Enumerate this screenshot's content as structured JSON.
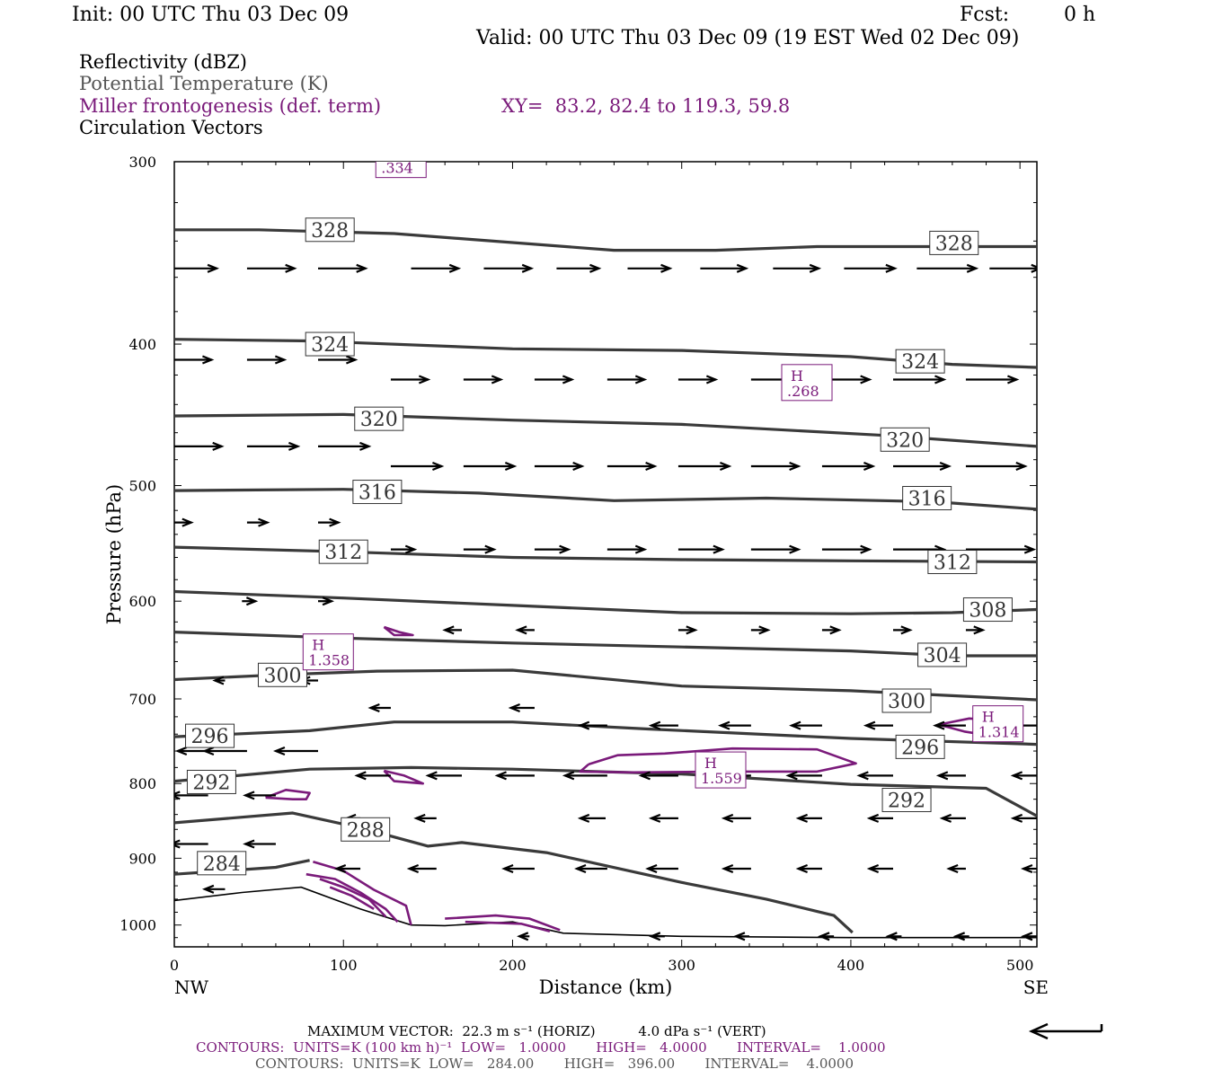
{
  "header": {
    "init": "Init: 00 UTC Thu 03 Dec 09",
    "fcst_label": "Fcst:",
    "fcst_value": "0 h",
    "valid": "Valid: 00 UTC Thu 03 Dec 09 (19 EST Wed 02 Dec 09)"
  },
  "legend": {
    "reflectivity": "Reflectivity (dBZ)",
    "theta": "Potential Temperature (K)",
    "miller": "Miller frontogenesis (def. term)",
    "xy": "XY=  83.2, 82.4 to 119.3, 59.8",
    "circulation": "Circulation Vectors"
  },
  "footer": {
    "max_vector": "MAXIMUM VECTOR:  22.3 m s⁻¹ (HORIZ)          4.0 dPa s⁻¹ (VERT)",
    "contours_purple": "CONTOURS:  UNITS=K (100 km h)⁻¹  LOW=   1.0000       HIGH=   4.0000       INTERVAL=    1.0000",
    "contours_gray": "CONTOURS:  UNITS=K  LOW=   284.00       HIGH=   396.00       INTERVAL=    4.0000"
  },
  "colors": {
    "theta": "#3a3a3a",
    "miller": "#7a1a7a",
    "vector": "#000000"
  },
  "chart_data": {
    "type": "cross-section",
    "xlabel": "Distance (km)",
    "ylabel": "Pressure (hPa)",
    "xlim": [
      0,
      510
    ],
    "ylim": [
      1035,
      300
    ],
    "y_scale": "log",
    "x_ticks": [
      0,
      100,
      200,
      300,
      400,
      500
    ],
    "y_ticks": [
      300,
      400,
      500,
      600,
      700,
      800,
      900,
      1000
    ],
    "x_end_labels": [
      "NW",
      "SE"
    ],
    "theta_contours": [
      {
        "value": 328,
        "points": [
          [
            0,
            334
          ],
          [
            50,
            334
          ],
          [
            130,
            336
          ],
          [
            260,
            345
          ],
          [
            320,
            345
          ],
          [
            380,
            343
          ],
          [
            450,
            343
          ],
          [
            510,
            343
          ]
        ],
        "labels": [
          [
            92,
            334
          ],
          [
            461,
            341
          ]
        ]
      },
      {
        "value": 324,
        "points": [
          [
            0,
            397
          ],
          [
            80,
            398
          ],
          [
            200,
            403
          ],
          [
            300,
            404
          ],
          [
            400,
            408
          ],
          [
            460,
            413
          ],
          [
            510,
            415
          ]
        ],
        "labels": [
          [
            92,
            400
          ],
          [
            441,
            411
          ]
        ]
      },
      {
        "value": 320,
        "points": [
          [
            0,
            448
          ],
          [
            100,
            447
          ],
          [
            200,
            451
          ],
          [
            300,
            454
          ],
          [
            420,
            462
          ],
          [
            510,
            470
          ]
        ],
        "labels": [
          [
            121,
            450
          ],
          [
            432,
            465
          ]
        ]
      },
      {
        "value": 316,
        "points": [
          [
            0,
            504
          ],
          [
            100,
            503
          ],
          [
            180,
            506
          ],
          [
            260,
            512
          ],
          [
            350,
            510
          ],
          [
            450,
            513
          ],
          [
            510,
            519
          ]
        ],
        "labels": [
          [
            120,
            505
          ],
          [
            445,
            510
          ]
        ]
      },
      {
        "value": 312,
        "points": [
          [
            0,
            551
          ],
          [
            100,
            555
          ],
          [
            200,
            560
          ],
          [
            300,
            562
          ],
          [
            400,
            563
          ],
          [
            510,
            564
          ]
        ],
        "labels": [
          [
            100,
            555
          ],
          [
            460,
            564
          ]
        ]
      },
      {
        "value": 308,
        "points": [
          [
            0,
            591
          ],
          [
            100,
            597
          ],
          [
            200,
            604
          ],
          [
            300,
            611
          ],
          [
            400,
            612
          ],
          [
            460,
            611
          ],
          [
            510,
            608
          ]
        ],
        "labels": [
          [
            481,
            608
          ]
        ]
      },
      {
        "value": 304,
        "points": [
          [
            0,
            630
          ],
          [
            100,
            636
          ],
          [
            200,
            641
          ],
          [
            300,
            645
          ],
          [
            400,
            649
          ],
          [
            460,
            654
          ],
          [
            510,
            654
          ]
        ],
        "labels": [
          [
            454,
            653
          ]
        ]
      },
      {
        "value": 300,
        "points": [
          [
            0,
            679
          ],
          [
            60,
            674
          ],
          [
            120,
            670
          ],
          [
            200,
            669
          ],
          [
            300,
            686
          ],
          [
            400,
            691
          ],
          [
            510,
            701
          ]
        ],
        "labels": [
          [
            64,
            674
          ],
          [
            433,
            702
          ]
        ]
      },
      {
        "value": 296,
        "points": [
          [
            0,
            743
          ],
          [
            80,
            736
          ],
          [
            130,
            726
          ],
          [
            200,
            726
          ],
          [
            280,
            734
          ],
          [
            400,
            745
          ],
          [
            510,
            752
          ]
        ],
        "labels": [
          [
            21,
            742
          ],
          [
            441,
            755
          ]
        ]
      },
      {
        "value": 292,
        "points": [
          [
            0,
            797
          ],
          [
            80,
            782
          ],
          [
            140,
            780
          ],
          [
            200,
            782
          ],
          [
            300,
            788
          ],
          [
            400,
            801
          ],
          [
            480,
            806
          ],
          [
            510,
            842
          ]
        ],
        "labels": [
          [
            22,
            798
          ],
          [
            433,
            821
          ]
        ]
      },
      {
        "value": 288,
        "points": [
          [
            0,
            851
          ],
          [
            70,
            838
          ],
          [
            110,
            858
          ],
          [
            150,
            883
          ],
          [
            170,
            878
          ],
          [
            220,
            892
          ],
          [
            300,
            935
          ],
          [
            350,
            960
          ],
          [
            390,
            985
          ],
          [
            401,
            1012
          ]
        ],
        "labels": [
          [
            113,
            860
          ]
        ]
      },
      {
        "value": 284,
        "points": [
          [
            0,
            923
          ],
          [
            60,
            913
          ],
          [
            80,
            903
          ]
        ],
        "labels": [
          [
            28,
            907
          ]
        ]
      }
    ],
    "terrain": [
      [
        0,
        962
      ],
      [
        40,
        950
      ],
      [
        75,
        942
      ],
      [
        110,
        975
      ],
      [
        140,
        1000
      ],
      [
        160,
        1001
      ],
      [
        200,
        995
      ],
      [
        230,
        1013
      ],
      [
        300,
        1018
      ],
      [
        400,
        1020
      ],
      [
        510,
        1020
      ]
    ],
    "miller_maxima": [
      {
        "label": "H",
        "value": 1.358,
        "x": 91,
        "p": 650
      },
      {
        "label": "H",
        "value": 1.559,
        "x": 323,
        "p": 783
      },
      {
        "label": "H",
        "value": 1.314,
        "x": 487,
        "p": 728
      },
      {
        "label": "H",
        "value": 0.268,
        "x": 374,
        "p": 425
      },
      {
        "label": "",
        "value": 0.334,
        "x": 134,
        "p": 299
      }
    ],
    "miller_contours": [
      [
        [
          245,
          776
        ],
        [
          262,
          765
        ],
        [
          290,
          763
        ],
        [
          330,
          757
        ],
        [
          380,
          758
        ],
        [
          403,
          775
        ],
        [
          380,
          785
        ],
        [
          330,
          785
        ],
        [
          270,
          786
        ],
        [
          240,
          785
        ],
        [
          245,
          776
        ]
      ],
      [
        [
          54,
          818
        ],
        [
          70,
          820
        ],
        [
          78,
          820
        ],
        [
          80,
          812
        ],
        [
          66,
          808
        ],
        [
          54,
          818
        ]
      ],
      [
        [
          124,
          784
        ],
        [
          136,
          790
        ],
        [
          147,
          800
        ],
        [
          130,
          797
        ],
        [
          124,
          784
        ]
      ],
      [
        [
          124,
          625
        ],
        [
          133,
          630
        ],
        [
          141,
          633
        ],
        [
          130,
          633
        ],
        [
          124,
          625
        ]
      ],
      [
        [
          452,
          729
        ],
        [
          470,
          722
        ],
        [
          485,
          724
        ],
        [
          480,
          741
        ],
        [
          467,
          737
        ],
        [
          452,
          729
        ]
      ],
      [
        [
          82,
          905
        ],
        [
          100,
          918
        ],
        [
          118,
          946
        ],
        [
          137,
          970
        ],
        [
          140,
          1000
        ]
      ],
      [
        [
          78,
          923
        ],
        [
          95,
          930
        ],
        [
          110,
          950
        ],
        [
          125,
          975
        ],
        [
          132,
          995
        ]
      ],
      [
        [
          86,
          930
        ],
        [
          100,
          942
        ],
        [
          115,
          960
        ],
        [
          125,
          987
        ]
      ],
      [
        [
          92,
          942
        ],
        [
          105,
          955
        ],
        [
          118,
          975
        ]
      ],
      [
        [
          160,
          990
        ],
        [
          190,
          985
        ],
        [
          210,
          990
        ],
        [
          228,
          1008
        ]
      ],
      [
        [
          172,
          995
        ],
        [
          205,
          998
        ],
        [
          222,
          1010
        ]
      ]
    ],
    "vectors": {
      "note": "Circulation vectors at (x km, p hPa) with arrow dx in km",
      "rows": [
        {
          "p": 355,
          "x": [
            0,
            43,
            85,
            140,
            183,
            226,
            268,
            311,
            354,
            396,
            439,
            482
          ],
          "dx": [
            25,
            28,
            28,
            28,
            28,
            25,
            25,
            27,
            27,
            30,
            35,
            30
          ]
        },
        {
          "p": 410,
          "x": [
            0,
            43,
            85
          ],
          "dx": [
            22,
            22,
            22
          ]
        },
        {
          "p": 423,
          "x": [
            128,
            171,
            213,
            256,
            298,
            341,
            383,
            425,
            468
          ],
          "dx": [
            22,
            22,
            22,
            22,
            22,
            45,
            28,
            30,
            30
          ]
        },
        {
          "p": 470,
          "x": [
            0,
            43,
            85
          ],
          "dx": [
            28,
            30,
            30
          ]
        },
        {
          "p": 485,
          "x": [
            128,
            171,
            213,
            256,
            298,
            341,
            383,
            425,
            468
          ],
          "dx": [
            30,
            30,
            28,
            28,
            30,
            28,
            30,
            33,
            35
          ]
        },
        {
          "p": 530,
          "x": [
            0,
            43,
            85
          ],
          "dx": [
            10,
            12,
            12
          ]
        },
        {
          "p": 553,
          "x": [
            128,
            171,
            213,
            256,
            298,
            341,
            383,
            425,
            468
          ],
          "dx": [
            14,
            18,
            20,
            22,
            26,
            28,
            28,
            30,
            40
          ]
        },
        {
          "p": 600,
          "x": [
            40,
            85
          ],
          "dx": [
            8,
            8
          ]
        },
        {
          "p": 628,
          "x": [
            170,
            213,
            298,
            341,
            383,
            425,
            468
          ],
          "dx": [
            -10,
            -10,
            10,
            10,
            10,
            10,
            10
          ]
        },
        {
          "p": 680,
          "x": [
            30,
            85
          ],
          "dx": [
            -6,
            -10
          ]
        },
        {
          "p": 710,
          "x": [
            128,
            213
          ],
          "dx": [
            -12,
            -14
          ]
        },
        {
          "p": 730,
          "x": [
            256,
            298,
            341,
            383,
            425,
            468,
            510
          ],
          "dx": [
            -16,
            -16,
            -18,
            -18,
            -16,
            -18,
            -18
          ]
        },
        {
          "p": 760,
          "x": [
            20,
            43,
            85
          ],
          "dx": [
            -18,
            -25,
            -25
          ]
        },
        {
          "p": 790,
          "x": [
            128,
            170,
            213,
            256,
            298,
            341,
            383,
            425,
            468,
            510
          ],
          "dx": [
            -20,
            -20,
            -22,
            -25,
            -22,
            -22,
            -20,
            -20,
            -16,
            -14
          ]
        },
        {
          "p": 815,
          "x": [
            20,
            60
          ],
          "dx": [
            -22,
            -18
          ]
        },
        {
          "p": 845,
          "x": [
            110,
            155,
            255,
            298,
            341,
            383,
            425,
            468,
            510
          ],
          "dx": [
            -8,
            -12,
            -15,
            -16,
            -16,
            -14,
            -14,
            -14,
            -14
          ]
        },
        {
          "p": 880,
          "x": [
            20,
            60
          ],
          "dx": [
            -22,
            -18
          ]
        },
        {
          "p": 915,
          "x": [
            110,
            155,
            213,
            256,
            298,
            341,
            383,
            425,
            468,
            510
          ],
          "dx": [
            -14,
            -16,
            -18,
            -18,
            -18,
            -16,
            -14,
            -14,
            -10,
            -8
          ]
        },
        {
          "p": 945,
          "x": [
            30
          ],
          "dx": [
            -12
          ]
        },
        {
          "p": 1018,
          "x": [
            210,
            290,
            340,
            390,
            430,
            470,
            510
          ],
          "dx": [
            -6,
            -8,
            -8,
            -8,
            -8,
            -8,
            -8
          ]
        }
      ]
    }
  }
}
